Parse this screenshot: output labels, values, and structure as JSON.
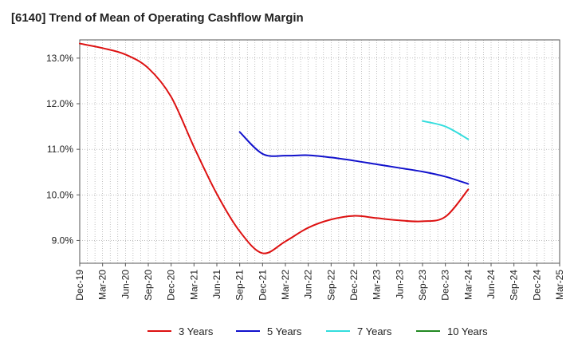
{
  "chart_data": {
    "type": "line",
    "title": "[6140]  Trend of Mean of Operating Cashflow Margin",
    "xlabel": "",
    "ylabel": "",
    "categories": [
      "Dec-19",
      "Mar-20",
      "Jun-20",
      "Sep-20",
      "Dec-20",
      "Mar-21",
      "Jun-21",
      "Sep-21",
      "Dec-21",
      "Mar-22",
      "Jun-22",
      "Sep-22",
      "Dec-22",
      "Mar-23",
      "Jun-23",
      "Sep-23",
      "Dec-23",
      "Mar-24",
      "Jun-24",
      "Sep-24",
      "Dec-24",
      "Mar-25"
    ],
    "y_tick_labels": [
      "9.0%",
      "10.0%",
      "11.0%",
      "12.0%",
      "13.0%"
    ],
    "y_tick_values": [
      9.0,
      10.0,
      11.0,
      12.0,
      13.0
    ],
    "ylim": [
      8.5,
      13.4
    ],
    "grid": true,
    "legend_position": "bottom",
    "series": [
      {
        "name": "3 Years",
        "color": "#dd1111",
        "values": [
          13.32,
          13.22,
          13.08,
          12.78,
          12.15,
          11.05,
          10.02,
          9.2,
          8.72,
          8.98,
          9.28,
          9.46,
          9.54,
          9.49,
          9.44,
          9.42,
          9.52,
          10.12,
          null,
          null,
          null,
          null
        ]
      },
      {
        "name": "5 Years",
        "color": "#1111cc",
        "values": [
          null,
          null,
          null,
          null,
          null,
          null,
          null,
          11.38,
          10.9,
          10.86,
          10.87,
          10.82,
          10.75,
          10.67,
          10.59,
          10.51,
          10.4,
          10.24,
          null,
          null,
          null,
          null
        ]
      },
      {
        "name": "7 Years",
        "color": "#33dddd",
        "values": [
          null,
          null,
          null,
          null,
          null,
          null,
          null,
          null,
          null,
          null,
          null,
          null,
          null,
          null,
          null,
          11.62,
          11.5,
          11.22,
          null,
          null,
          null,
          null
        ]
      },
      {
        "name": "10 Years",
        "color": "#228822",
        "values": [
          null,
          null,
          null,
          null,
          null,
          null,
          null,
          null,
          null,
          null,
          null,
          null,
          null,
          null,
          null,
          null,
          null,
          null,
          null,
          null,
          null,
          null
        ]
      }
    ]
  }
}
